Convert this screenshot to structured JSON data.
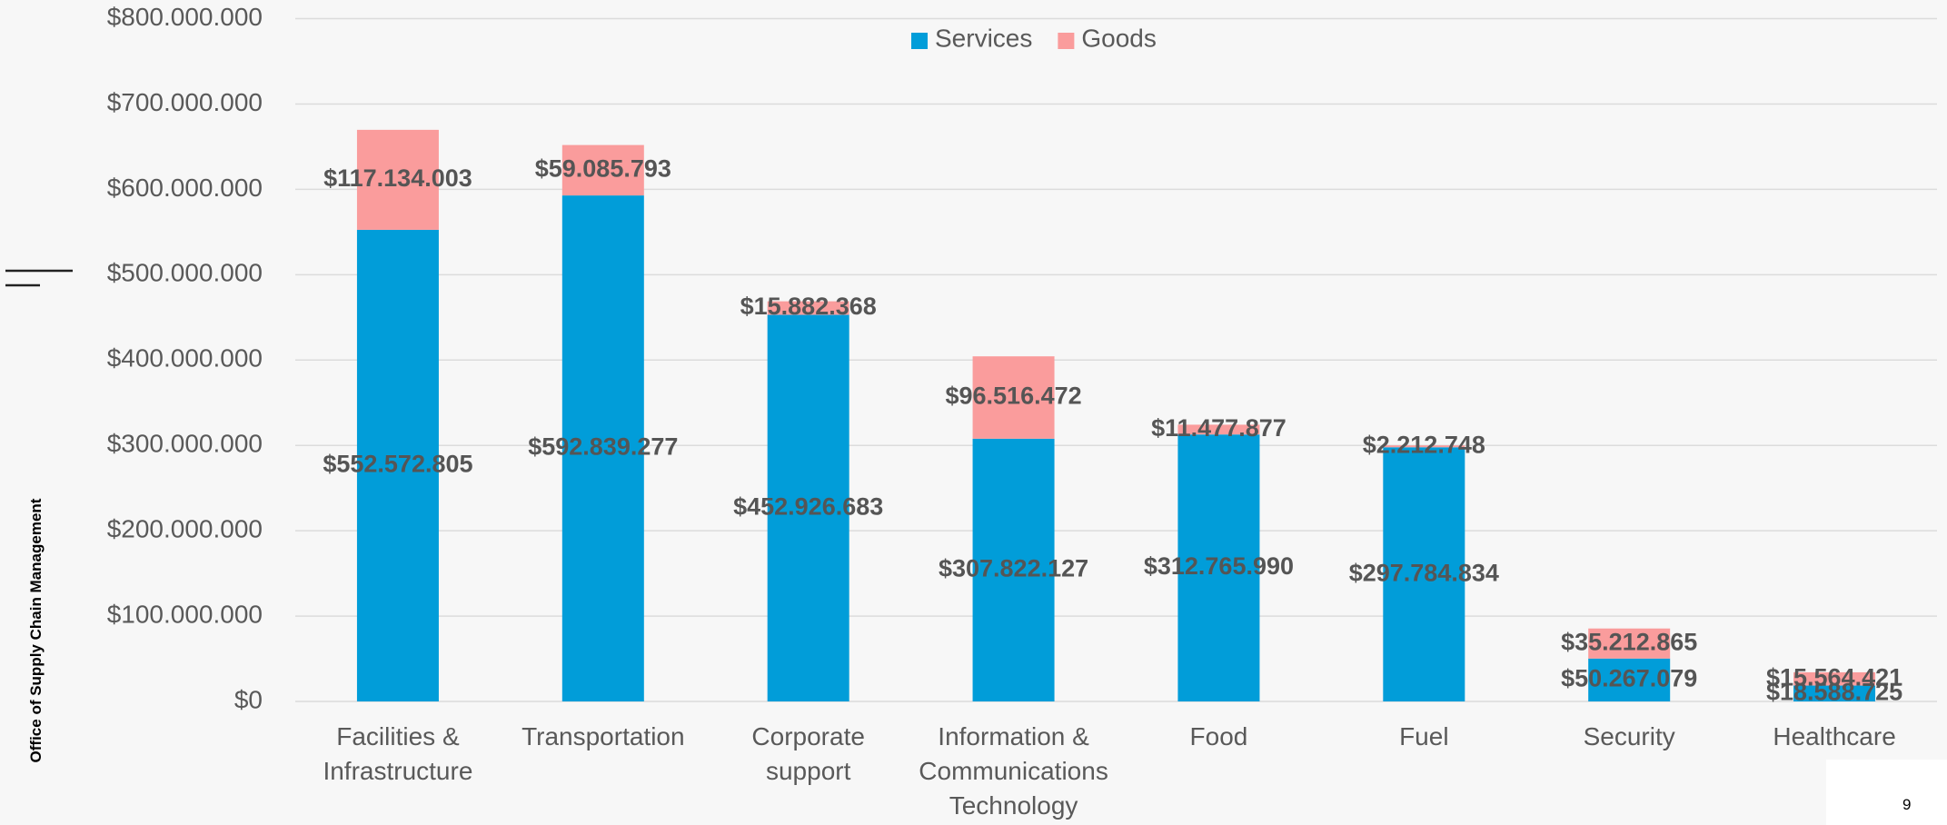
{
  "chart_data": {
    "type": "stacked_bar",
    "categories": [
      "Facilities & Infrastructure",
      "Transportation",
      "Corporate support",
      "Information & Communications Technology",
      "Food",
      "Fuel",
      "Security",
      "Healthcare"
    ],
    "series": [
      {
        "name": "Services",
        "color": "#019dd9",
        "values": [
          552572805,
          592839277,
          452926683,
          307822127,
          312765990,
          297784834,
          50267079,
          18588725
        ],
        "value_labels": [
          "$552.572.805",
          "$592.839.277",
          "$452.926.683",
          "$307.822.127",
          "$312.765.990",
          "$297.784.834",
          "$50.267.079",
          "$18.588.725"
        ]
      },
      {
        "name": "Goods",
        "color": "#fa9c9c",
        "values": [
          117134003,
          59085793,
          15882368,
          96516472,
          11477877,
          2212748,
          35212865,
          15564421
        ],
        "value_labels": [
          "$117.134.003",
          "$59.085.793",
          "$15.882.368",
          "$96.516.472",
          "$11.477.877",
          "$2.212.748",
          "$35.212.865",
          "$15.564.421"
        ]
      }
    ],
    "ylim": [
      0,
      800000000
    ],
    "yticks": [
      {
        "value": 0,
        "label": "$0"
      },
      {
        "value": 100000000,
        "label": "$100.000.000"
      },
      {
        "value": 200000000,
        "label": "$200.000.000"
      },
      {
        "value": 300000000,
        "label": "$300.000.000"
      },
      {
        "value": 400000000,
        "label": "$400.000.000"
      },
      {
        "value": 500000000,
        "label": "$500.000.000"
      },
      {
        "value": 600000000,
        "label": "$600.000.000"
      },
      {
        "value": 700000000,
        "label": "$700.000.000"
      },
      {
        "value": 800000000,
        "label": "$800.000.000"
      }
    ],
    "grid": true,
    "legend": "top"
  },
  "side_label": "Office of Supply Chain Management",
  "page_number": "9"
}
